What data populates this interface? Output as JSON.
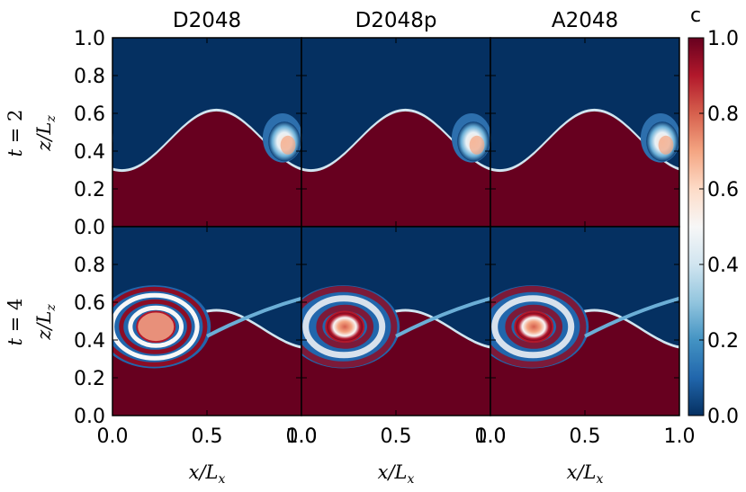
{
  "chart_data": {
    "type": "heatmap",
    "colormap": "RdBu_r",
    "colorbar": {
      "label": "c",
      "range": [
        0.0,
        1.0
      ],
      "ticks": [
        "0.0",
        "0.2",
        "0.4",
        "0.6",
        "0.8",
        "1.0"
      ],
      "low_color": "#053061",
      "mid_color": "#f7f7f7",
      "high_color": "#67001f"
    },
    "columns": [
      {
        "title": "D2048"
      },
      {
        "title": "D2048p"
      },
      {
        "title": "A2048"
      }
    ],
    "rows": [
      {
        "label_main": "t",
        "label_eq": " = ",
        "label_val": "2",
        "ylabel_main": "z/L",
        "ylabel_sub": "z",
        "yticks": [
          "0.0",
          "0.2",
          "0.4",
          "0.6",
          "0.8",
          "1.0"
        ],
        "ylim": [
          0.0,
          1.0
        ]
      },
      {
        "label_main": "t",
        "label_eq": " = ",
        "label_val": "4",
        "ylabel_main": "z/L",
        "ylabel_sub": "z",
        "yticks": [
          "0.0",
          "0.2",
          "0.4",
          "0.6",
          "0.8"
        ],
        "ylim": [
          0.0,
          1.0
        ]
      }
    ],
    "xlabel_main": "x/L",
    "xlabel_sub": "x",
    "xticks": [
      "0.0",
      "0.5",
      "1.0"
    ],
    "xlim": [
      0.0,
      1.0
    ],
    "description_fields": {
      "interface_center_z": 0.45,
      "interface_amplitude_t2": 0.16,
      "interface_amplitude_t4": 0.1,
      "vortex_center_x_t2": 0.9,
      "vortex_center_x_t4": 0.22,
      "vortex_center_z": 0.47
    }
  }
}
